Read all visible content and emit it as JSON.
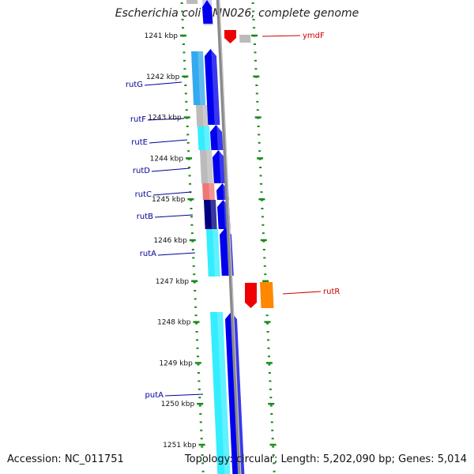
{
  "title": "Escherichia coli UMN026, complete genome",
  "footer": {
    "accession": "Accession: NC_011751",
    "topology": "Topology: circular; Length: 5,202,090 bp; Genes: 5,014"
  },
  "colors": {
    "backbone": "#8a8a8a",
    "tick": "#1a8a1a",
    "label_left": "#000099",
    "label_right": "#cc0000",
    "cyan": "#33eeff",
    "light_blue": "#33aaee",
    "blue": "#0000ee",
    "gray": "#bbbbbb",
    "pink": "#ee7777",
    "navy": "#000080",
    "red": "#ee0000",
    "orange": "#ff8800"
  },
  "scale": {
    "unit": "kbp",
    "ticks": [
      {
        "label": "1241 kbp"
      },
      {
        "label": "1242 kbp"
      },
      {
        "label": "1243 kbp"
      },
      {
        "label": "1244 kbp"
      },
      {
        "label": "1245 kbp"
      },
      {
        "label": "1246 kbp"
      },
      {
        "label": "1247 kbp"
      },
      {
        "label": "1248 kbp"
      },
      {
        "label": "1249 kbp"
      },
      {
        "label": "1250 kbp"
      },
      {
        "label": "1251 kbp"
      }
    ]
  },
  "genes_left": [
    {
      "label": "rutG"
    },
    {
      "label": "rutF"
    },
    {
      "label": "rutE"
    },
    {
      "label": "rutD"
    },
    {
      "label": "rutC"
    },
    {
      "label": "rutB"
    },
    {
      "label": "rutA"
    },
    {
      "label": "putA"
    }
  ],
  "genes_right": [
    {
      "label": "ymdF"
    },
    {
      "label": "rutR"
    }
  ]
}
